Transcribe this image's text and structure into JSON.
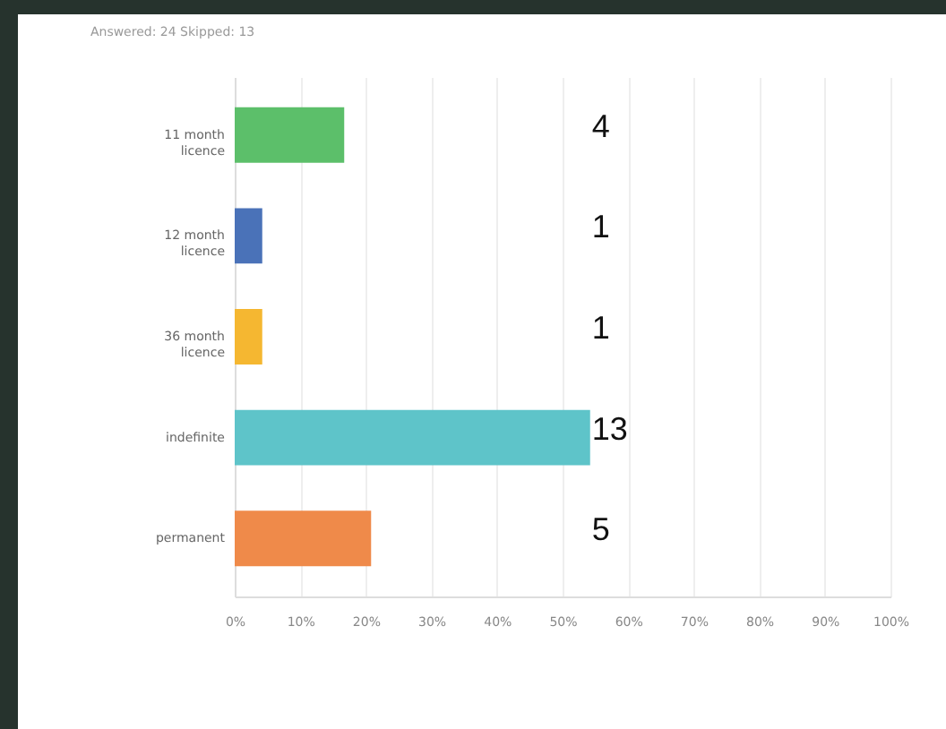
{
  "chart_data": {
    "type": "bar",
    "orientation": "horizontal",
    "annotations": [
      "Answered: 24    Skipped: 13",
      "4",
      "1",
      "1",
      "13",
      "5"
    ],
    "categories": [
      "11 month licence",
      "12 month licence",
      "36 month licence",
      "indefinite",
      "permanent"
    ],
    "values": [
      16.7,
      4.2,
      4.2,
      54.2,
      20.8
    ],
    "colors": [
      "#5cbf6a",
      "#4a72b8",
      "#f5b731",
      "#5ec4c9",
      "#ef8a4a"
    ],
    "xlim": [
      0,
      100
    ],
    "xticks": [
      {
        "value": 0,
        "label": "0%"
      },
      {
        "value": 10,
        "label": "10%"
      },
      {
        "value": 20,
        "label": "20%"
      },
      {
        "value": 30,
        "label": "30%"
      },
      {
        "value": 40,
        "label": "40%"
      },
      {
        "value": 50,
        "label": "50%"
      },
      {
        "value": 60,
        "label": "60%"
      },
      {
        "value": 70,
        "label": "70%"
      },
      {
        "value": 80,
        "label": "80%"
      },
      {
        "value": 90,
        "label": "90%"
      },
      {
        "value": 100,
        "label": "100%"
      }
    ],
    "grid": "x"
  }
}
